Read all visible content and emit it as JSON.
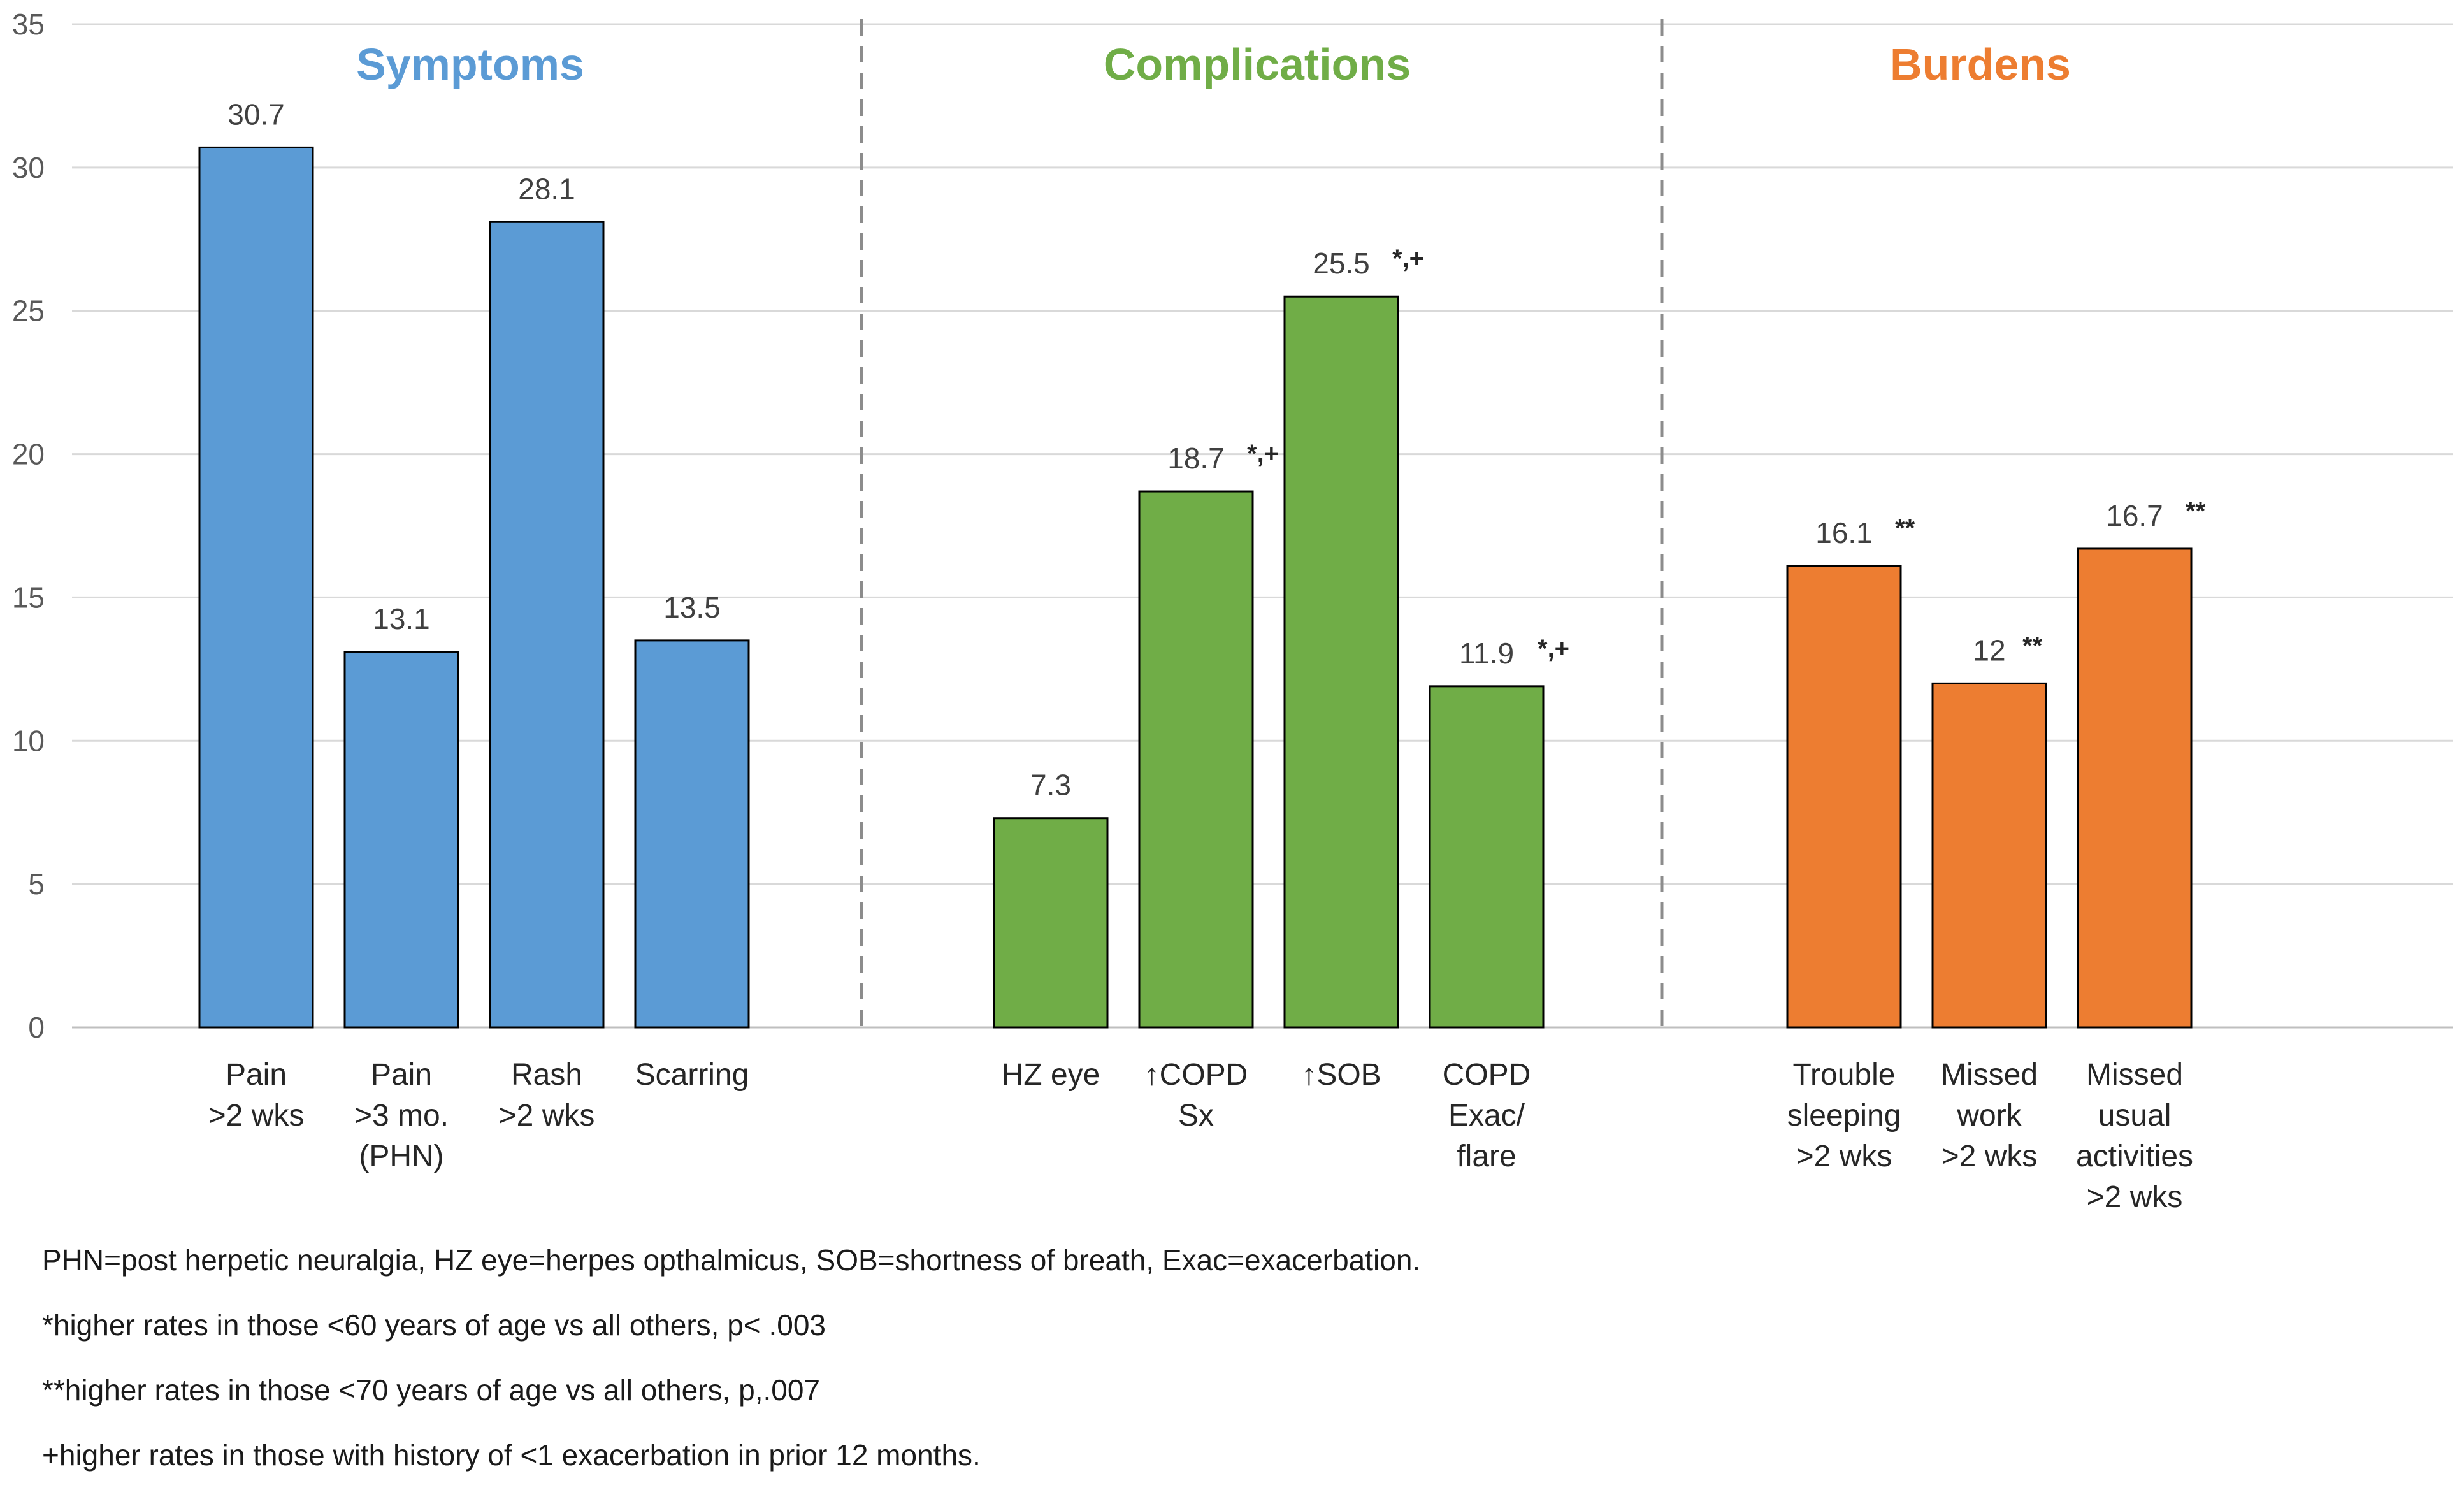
{
  "chart_data": {
    "type": "bar",
    "yaxis": {
      "min": 0,
      "max": 35,
      "step": 5,
      "ticks": [
        "0",
        "5",
        "10",
        "15",
        "20",
        "25",
        "30",
        "35"
      ]
    },
    "grid": true,
    "groups": [
      {
        "name": "Symptoms",
        "color": "#5b9bd5",
        "bars": [
          {
            "category": [
              "Pain",
              ">2 wks"
            ],
            "value": 30.7,
            "label": "30.7",
            "note": ""
          },
          {
            "category": [
              "Pain",
              ">3 mo.",
              "(PHN)"
            ],
            "value": 13.1,
            "label": "13.1",
            "note": ""
          },
          {
            "category": [
              "Rash",
              ">2 wks"
            ],
            "value": 28.1,
            "label": "28.1",
            "note": ""
          },
          {
            "category": [
              "Scarring"
            ],
            "value": 13.5,
            "label": "13.5",
            "note": ""
          }
        ]
      },
      {
        "name": "Complications",
        "color": "#70ad47",
        "bars": [
          {
            "category": [
              "HZ eye"
            ],
            "value": 7.3,
            "label": "7.3",
            "note": ""
          },
          {
            "category": [
              "↑COPD",
              "Sx"
            ],
            "value": 18.7,
            "label": "18.7",
            "note": "*,+"
          },
          {
            "category": [
              "↑SOB"
            ],
            "value": 25.5,
            "label": "25.5",
            "note": "*,+"
          },
          {
            "category": [
              "COPD",
              "Exac/",
              "flare"
            ],
            "value": 11.9,
            "label": "11.9",
            "note": "*,+"
          }
        ]
      },
      {
        "name": "Burdens",
        "color": "#ed7d31",
        "bars": [
          {
            "category": [
              "Trouble",
              "sleeping",
              ">2 wks"
            ],
            "value": 16.1,
            "label": "16.1",
            "note": "**"
          },
          {
            "category": [
              "Missed",
              "work",
              ">2 wks"
            ],
            "value": 12,
            "label": "12",
            "note": "**"
          },
          {
            "category": [
              "Missed",
              "usual",
              "activities",
              ">2 wks"
            ],
            "value": 16.7,
            "label": "16.7",
            "note": "**"
          }
        ]
      }
    ]
  },
  "footnotes": [
    "PHN=post herpetic neuralgia, HZ eye=herpes opthalmicus,  SOB=shortness of breath, Exac=exacerbation.",
    "*higher rates in those <60 years of age vs all others, p< .003",
    "**higher rates in those <70 years of age vs all others, p,.007",
    "+higher rates in those with history of <1 exacerbation in prior 12 months."
  ]
}
